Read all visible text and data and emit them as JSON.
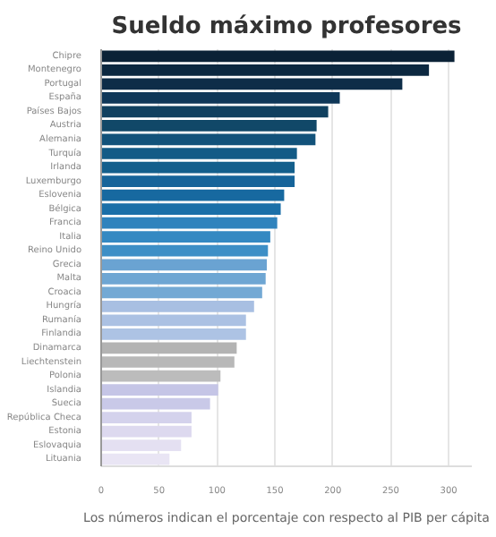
{
  "chart_data": {
    "type": "bar",
    "orientation": "horizontal",
    "title": "Sueldo máximo profesores",
    "categories": [
      "Chipre",
      "Montenegro",
      "Portugal",
      "España",
      "Países Bajos",
      "Austria",
      "Alemania",
      "Turquía",
      "Irlanda",
      "Luxemburgo",
      "Eslovenia",
      "Bélgica",
      "Francia",
      "Italia",
      "Reino Unido",
      "Grecia",
      "Malta",
      "Croacia",
      "Hungría",
      "Rumanía",
      "Finlandia",
      "Dinamarca",
      "Liechtenstein",
      "Polonia",
      "Islandia",
      "Suecia",
      "República Checa",
      "Estonia",
      "Eslovaquia",
      "Lituania"
    ],
    "values": [
      305,
      283,
      260,
      206,
      196,
      186,
      185,
      169,
      167,
      167,
      158,
      155,
      152,
      146,
      144,
      143,
      142,
      139,
      132,
      125,
      125,
      117,
      115,
      103,
      101,
      94,
      78,
      78,
      69,
      59
    ],
    "colors": [
      "#0b2236",
      "#0c2840",
      "#0e2d48",
      "#0f3758",
      "#10405f",
      "#114868",
      "#12527a",
      "#135b86",
      "#145f8c",
      "#16649a",
      "#1769a0",
      "#1a6fa8",
      "#2f83bd",
      "#3489c2",
      "#3d8fc6",
      "#6aa3d2",
      "#6ea6d3",
      "#73a9d4",
      "#a8bfe2",
      "#abc1e3",
      "#adc3e4",
      "#b3b3b3",
      "#b8b8b8",
      "#bcbcbc",
      "#c5c5e6",
      "#c9c9e8",
      "#d4d2ec",
      "#ddd9ef",
      "#e4e0f2",
      "#e9e5f4"
    ],
    "xlim": [
      0,
      320
    ],
    "xticks": [
      0,
      50,
      100,
      150,
      200,
      250,
      300
    ],
    "grid": "x",
    "annotations": [
      "Los números indican el porcentaje con respecto al PIB per cápita"
    ]
  }
}
